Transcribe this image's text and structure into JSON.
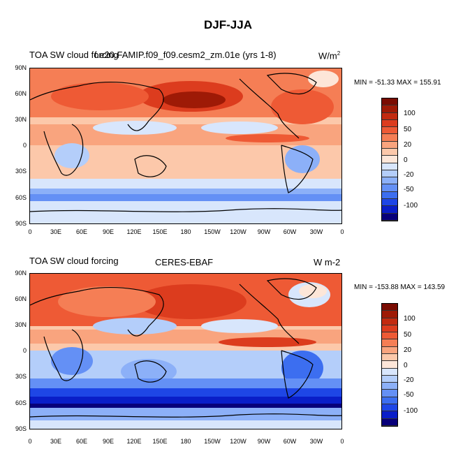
{
  "figure": {
    "title": "DJF-JJA"
  },
  "palette": [
    "#08007a",
    "#0a1ec8",
    "#1e46e6",
    "#3c6ef0",
    "#6490f5",
    "#8cb0f8",
    "#b4cefa",
    "#d8e6fc",
    "#fde6d8",
    "#fcc8aa",
    "#f9a47e",
    "#f57e55",
    "#ee5a35",
    "#dc3c1e",
    "#c22a10",
    "#9e1a06",
    "#7a0c02"
  ],
  "panels": [
    {
      "left_label": "TOA SW cloud forcing",
      "center_label": "f.e20.FAMIP.f09_f09.cesm2_zm.01e (yrs 1-8)",
      "units": "W/m",
      "units_superscript": "2",
      "stats": "MIN = -51.33 MAX = 155.91",
      "colorbar_labels": [
        "100",
        "50",
        "20",
        "0",
        "-20",
        "-50",
        "-100"
      ]
    },
    {
      "left_label": "TOA SW cloud forcing",
      "center_label": "CERES-EBAF",
      "units": "W m-2",
      "stats": "MIN = -153.88 MAX = 143.59",
      "colorbar_labels": [
        "100",
        "50",
        "20",
        "0",
        "-20",
        "-50",
        "-100"
      ]
    }
  ],
  "axes": {
    "lat_ticks": [
      "90N",
      "60N",
      "30N",
      "0",
      "30S",
      "60S",
      "90S"
    ],
    "lon_ticks": [
      "0",
      "30E",
      "60E",
      "90E",
      "120E",
      "150E",
      "180",
      "150W",
      "120W",
      "90W",
      "60W",
      "30W",
      "0"
    ]
  }
}
